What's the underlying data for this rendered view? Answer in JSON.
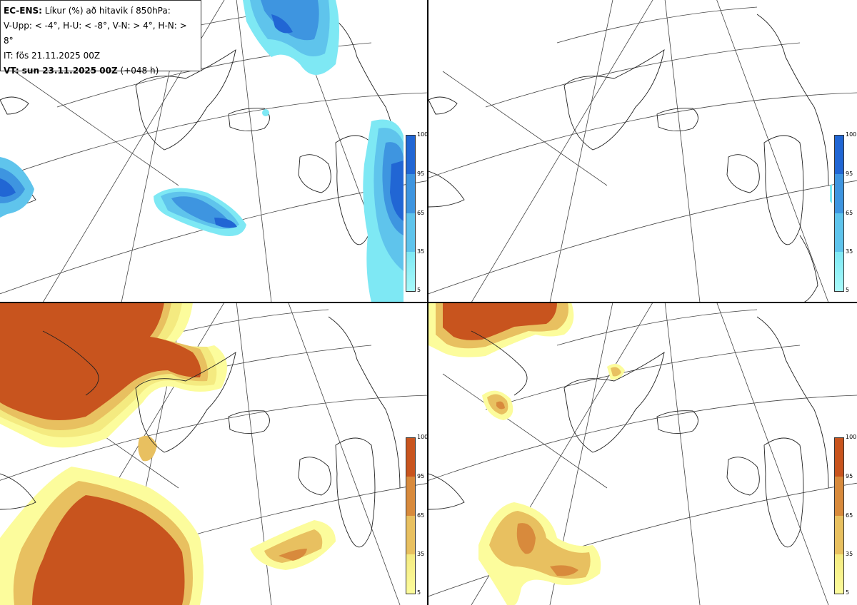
{
  "header": {
    "model": "EC-ENS:",
    "title": "Líkur (%) að hitavik í 850hPa:",
    "thresholds": "V-Upp: < -4°, H-U: < -8°, V-N: > 4°, H-N: > 8°",
    "init_time": "IT: fös 21.11.2025 00Z",
    "valid_label": "VT: sun 23.11.2025 00Z",
    "lead": "(+048 h)"
  },
  "colorbars": {
    "cold": {
      "ticks": [
        "100",
        "95",
        "65",
        "35",
        "5"
      ],
      "colors": [
        "#2166d4",
        "#3e95e0",
        "#5fc4ec",
        "#7ee8f4",
        "#a8fafa"
      ]
    },
    "warm": {
      "ticks": [
        "100",
        "95",
        "65",
        "35",
        "5"
      ],
      "colors": [
        "#c8541e",
        "#d88a3c",
        "#e8c060",
        "#f4ea80",
        "#fcfc9c"
      ]
    }
  },
  "panels": [
    {
      "id": "V-Upp",
      "palette": "cold"
    },
    {
      "id": "H-U",
      "palette": "cold"
    },
    {
      "id": "V-N",
      "palette": "warm"
    },
    {
      "id": "H-N",
      "palette": "warm"
    }
  ]
}
